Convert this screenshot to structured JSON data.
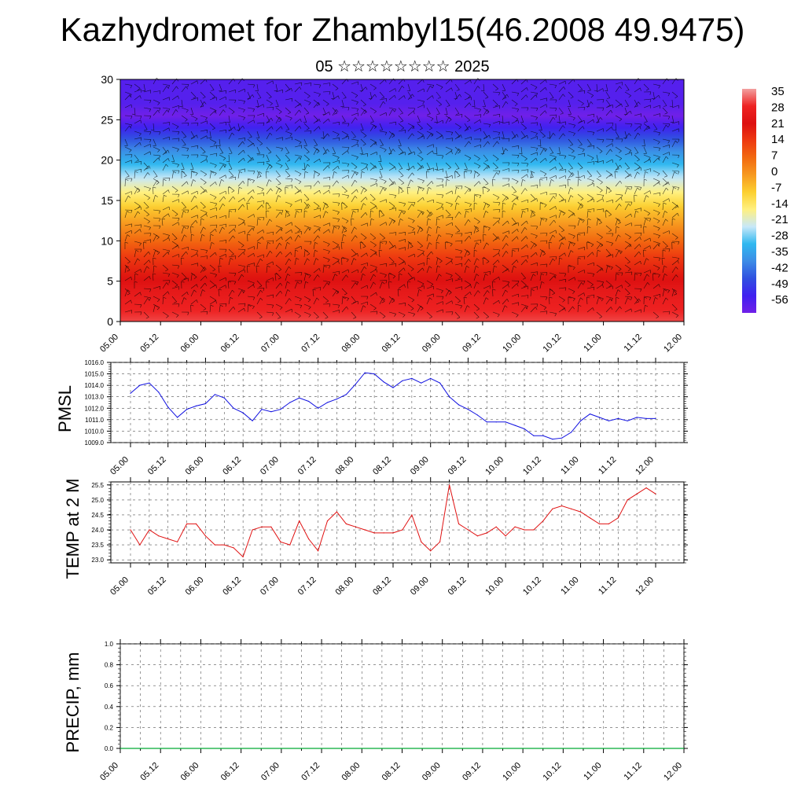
{
  "title": "Kazhydromet for Zhambyl15(46.2008 49.9475)",
  "subtitle": "05 ☆☆☆☆☆☆☆☆ 2025",
  "chart_data": [
    {
      "type": "heatmap",
      "description_note": "",
      "x_ticks": [
        "05.00",
        "05.12",
        "06.00",
        "06.12",
        "07.00",
        "07.12",
        "08.00",
        "08.12",
        "09.00",
        "09.12",
        "10.00",
        "10.12",
        "11.00",
        "11.12",
        "12.00"
      ],
      "y_ticks": [
        0,
        5,
        10,
        15,
        20,
        25,
        30
      ],
      "ylim": [
        0,
        30
      ],
      "colorbar_labels": [
        "35",
        "28",
        "21",
        "14",
        "7",
        "0",
        "-7",
        "-14",
        "-21",
        "-28",
        "-35",
        "-42",
        "-49",
        "-56"
      ],
      "colorbar_colors": [
        "#f2a0a0",
        "#ee2222",
        "#dd1010",
        "#ee3a10",
        "#f26a10",
        "#f79a20",
        "#fcd030",
        "#fff080",
        "#c8e8f8",
        "#30b8f0",
        "#3c8ce6",
        "#3050e0",
        "#4020f0",
        "#7020e8"
      ],
      "profile": [
        {
          "level": 0,
          "temp": 30
        },
        {
          "level": 4,
          "temp": 24
        },
        {
          "level": 8,
          "temp": 14
        },
        {
          "level": 11,
          "temp": 4
        },
        {
          "level": 14,
          "temp": -6
        },
        {
          "level": 16,
          "temp": -14
        },
        {
          "level": 18.5,
          "temp": -24
        },
        {
          "level": 21,
          "temp": -34
        },
        {
          "level": 23.5,
          "temp": -46
        },
        {
          "level": 25.5,
          "temp": -56
        },
        {
          "level": 27,
          "temp": -52
        },
        {
          "level": 31,
          "temp": -52
        }
      ],
      "overlay": "wind barbs"
    },
    {
      "type": "line",
      "ylabel": "PMSL",
      "ylim": [
        1009.0,
        1016.0
      ],
      "y_ticks": [
        "1009.0",
        "1010.0",
        "1011.0",
        "1012.0",
        "1013.0",
        "1014.0",
        "1015.0",
        "1016.0"
      ],
      "x_ticks": [
        "05.00",
        "05.12",
        "06.00",
        "06.12",
        "07.00",
        "07.12",
        "08.00",
        "08.12",
        "09.00",
        "09.12",
        "10.00",
        "10.12",
        "11.00",
        "11.12",
        "12.00"
      ],
      "series": [
        {
          "color": "#1010e0",
          "x": [
            0,
            3,
            6,
            9,
            12,
            15,
            18,
            21,
            24,
            27,
            30,
            33,
            36,
            39,
            42,
            45,
            48,
            51,
            54,
            57,
            60,
            63,
            66,
            69,
            72,
            75,
            78,
            81,
            84,
            87,
            90,
            93,
            96,
            99,
            102,
            105,
            108,
            111,
            114,
            117,
            120,
            123,
            126,
            129,
            132,
            135,
            138,
            141,
            144,
            147,
            150,
            153,
            156,
            159,
            162,
            165,
            168
          ],
          "values": [
            1013.3,
            1014.0,
            1014.2,
            1013.4,
            1012.1,
            1011.2,
            1011.9,
            1012.2,
            1012.4,
            1013.2,
            1012.9,
            1012.0,
            1011.6,
            1010.9,
            1011.9,
            1011.7,
            1011.9,
            1012.5,
            1012.9,
            1012.6,
            1012.0,
            1012.5,
            1012.8,
            1013.2,
            1014.1,
            1015.1,
            1015.0,
            1014.3,
            1013.8,
            1014.4,
            1014.6,
            1014.2,
            1014.6,
            1014.2,
            1013.0,
            1012.3,
            1011.9,
            1011.4,
            1010.8,
            1010.8,
            1010.8,
            1010.5,
            1010.2,
            1009.6,
            1009.6,
            1009.3,
            1009.4,
            1009.9,
            1010.9,
            1011.5,
            1011.2,
            1010.9,
            1011.1,
            1010.9,
            1011.2,
            1011.1,
            1011.1
          ]
        }
      ]
    },
    {
      "type": "line",
      "ylabel": "TEMP at 2 M",
      "ylim": [
        22.9,
        25.6
      ],
      "y_ticks": [
        "23.0",
        "23.5",
        "24.0",
        "24.5",
        "25.0",
        "25.5"
      ],
      "x_ticks": [
        "05.00",
        "05.12",
        "06.00",
        "06.12",
        "07.00",
        "07.12",
        "08.00",
        "08.12",
        "09.00",
        "09.12",
        "10.00",
        "10.12",
        "11.00",
        "11.12",
        "12.00"
      ],
      "series": [
        {
          "color": "#e01010",
          "x": [
            0,
            3,
            6,
            9,
            12,
            15,
            18,
            21,
            24,
            27,
            30,
            33,
            36,
            39,
            42,
            45,
            48,
            51,
            54,
            57,
            60,
            63,
            66,
            69,
            72,
            75,
            78,
            81,
            84,
            87,
            90,
            93,
            96,
            99,
            102,
            105,
            108,
            111,
            114,
            117,
            120,
            123,
            126,
            129,
            132,
            135,
            138,
            141,
            144,
            147,
            150,
            153,
            156,
            159,
            162,
            165,
            168
          ],
          "values": [
            24.0,
            23.5,
            24.0,
            23.8,
            23.7,
            23.6,
            24.2,
            24.2,
            23.8,
            23.5,
            23.5,
            23.4,
            23.1,
            24.0,
            24.1,
            24.1,
            23.6,
            23.5,
            24.3,
            23.7,
            23.3,
            24.3,
            24.6,
            24.2,
            24.1,
            24.0,
            23.9,
            23.9,
            23.9,
            24.0,
            24.5,
            23.6,
            23.3,
            23.6,
            25.5,
            24.2,
            24.0,
            23.8,
            23.9,
            24.1,
            23.8,
            24.1,
            24.0,
            24.0,
            24.3,
            24.7,
            24.8,
            24.7,
            24.6,
            24.4,
            24.2,
            24.2,
            24.4,
            25.0,
            25.2,
            25.4,
            25.2
          ]
        }
      ]
    },
    {
      "type": "bar",
      "ylabel": "PRECIP, mm",
      "ylim": [
        0.0,
        1.0
      ],
      "y_ticks": [
        "0.0",
        "0.2",
        "0.4",
        "0.6",
        "0.8",
        "1.0"
      ],
      "x_ticks": [
        "05.00",
        "05.12",
        "06.00",
        "06.12",
        "07.00",
        "07.12",
        "08.00",
        "08.12",
        "09.00",
        "09.12",
        "10.00",
        "10.12",
        "11.00",
        "11.12",
        "12.00"
      ],
      "values": []
    }
  ]
}
